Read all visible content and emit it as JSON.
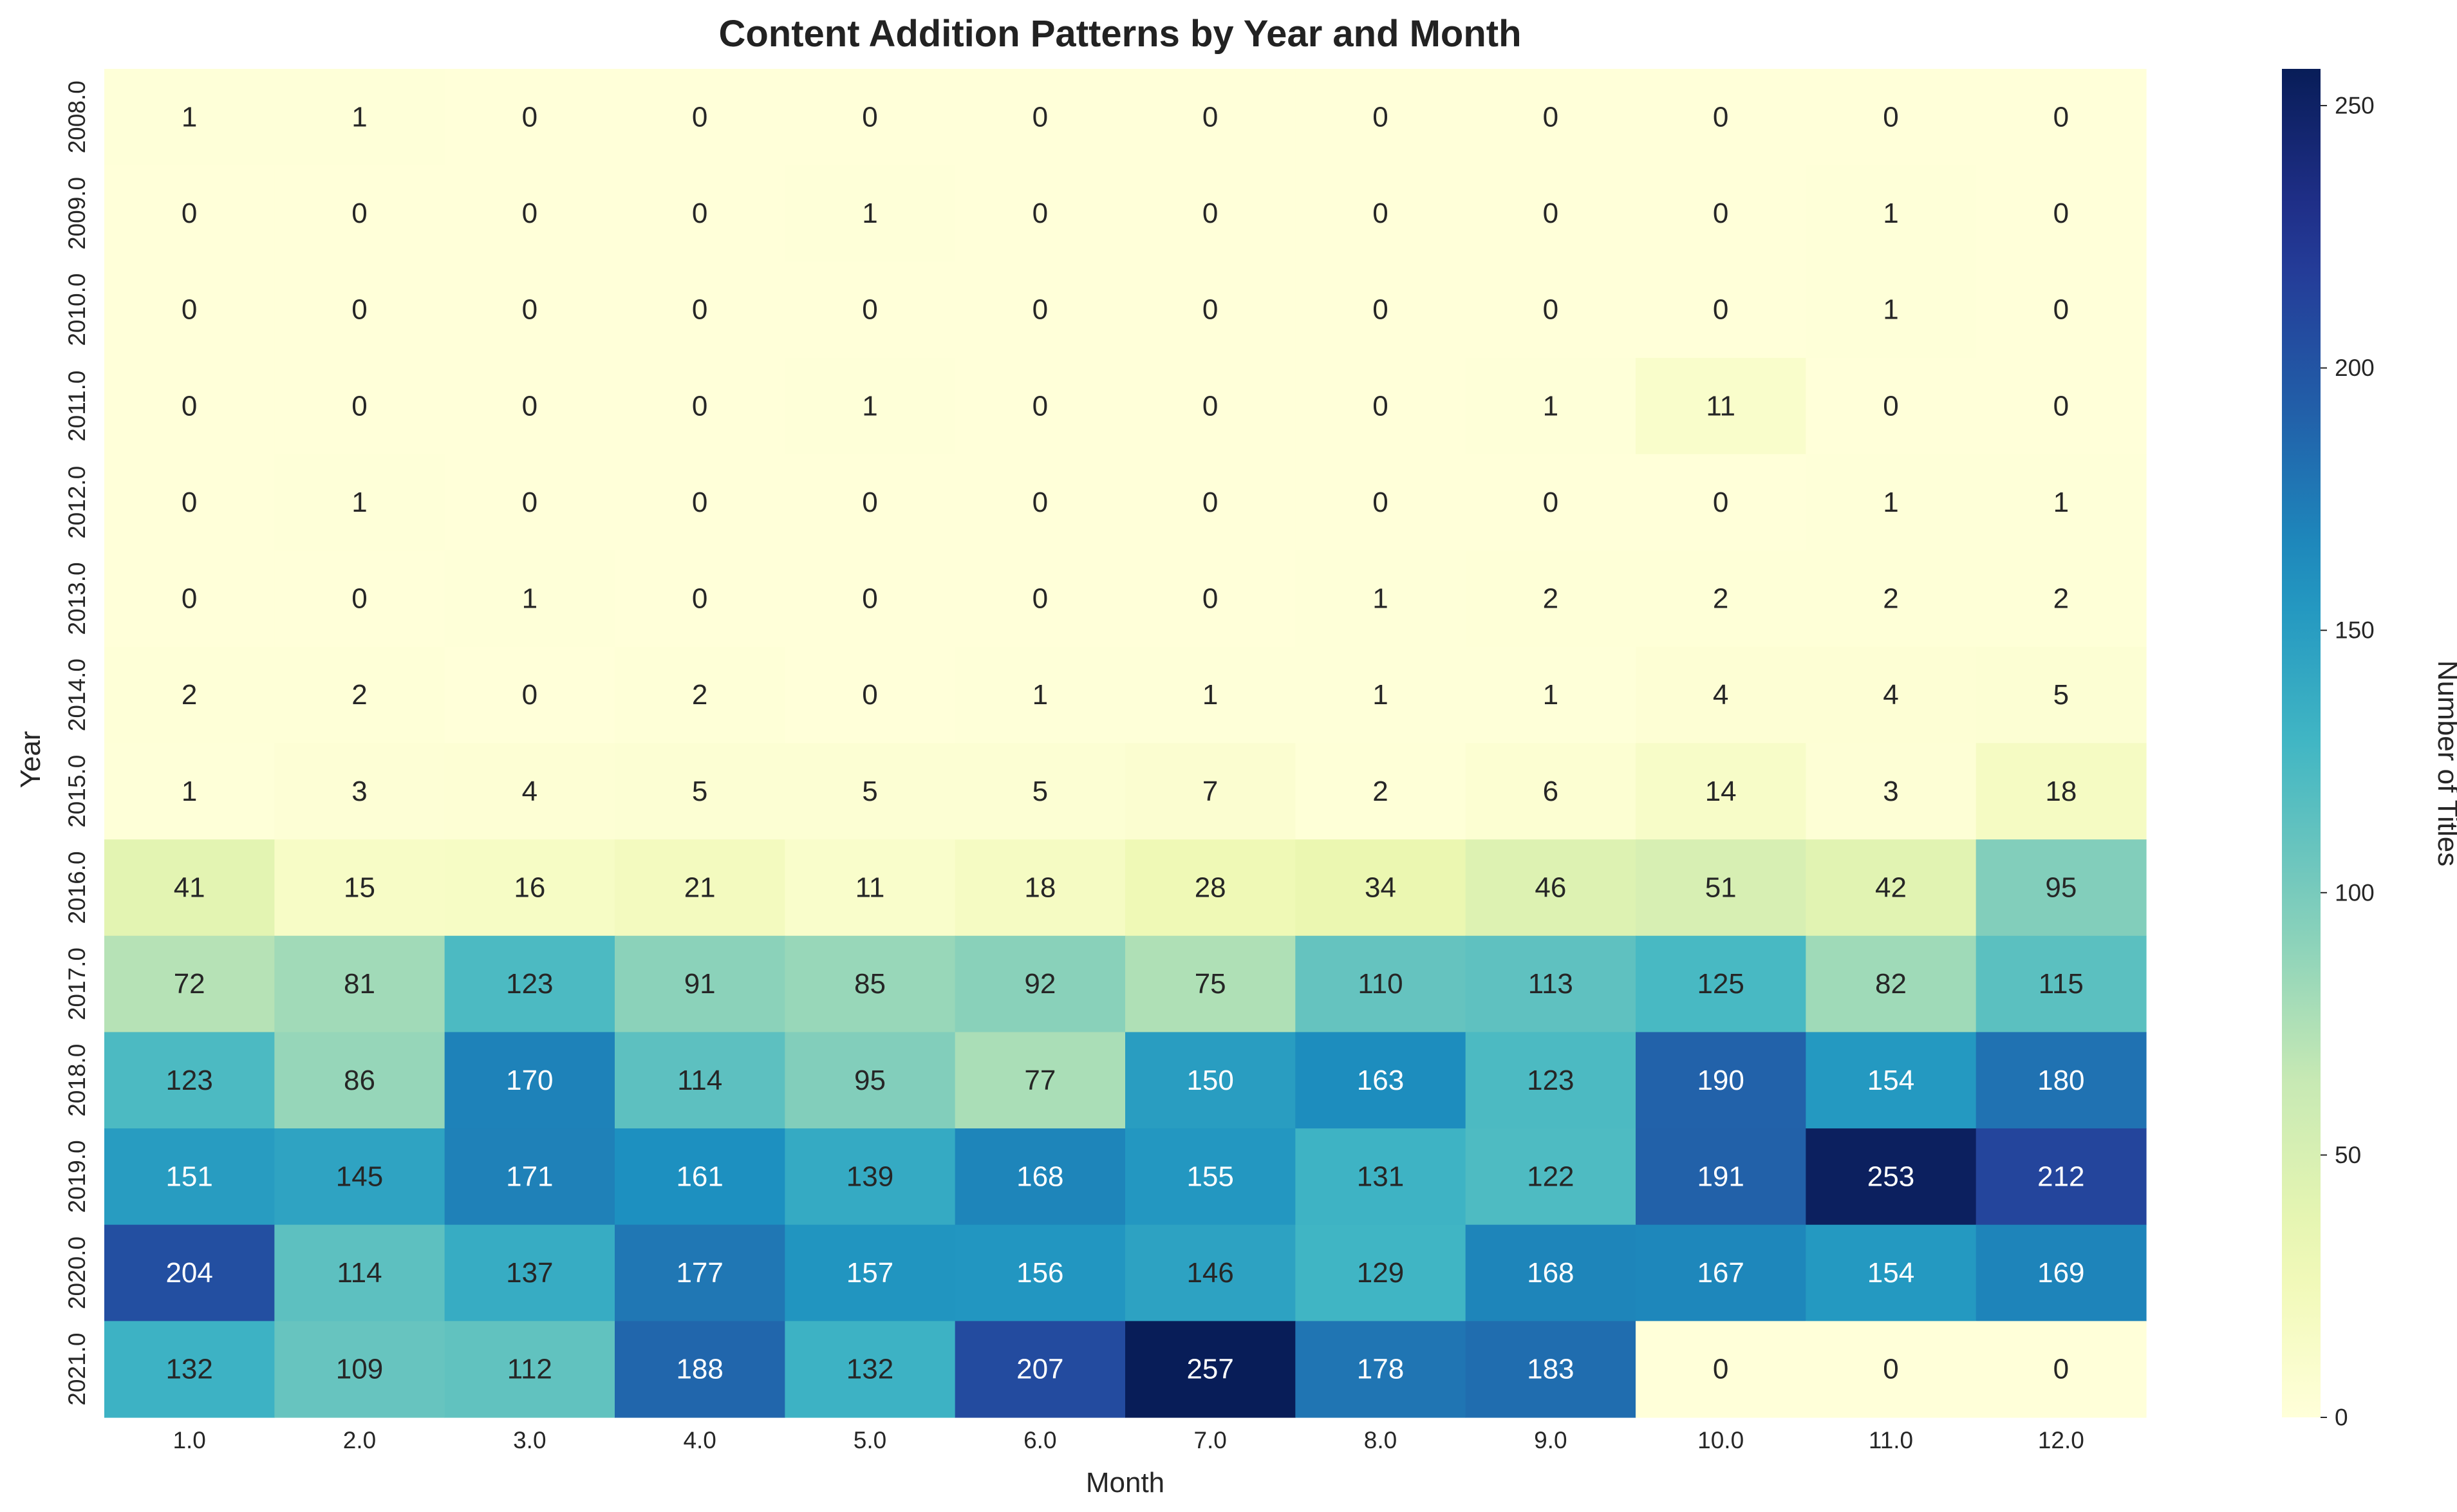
{
  "chart_data": {
    "type": "heatmap",
    "title": "Content Addition Patterns by Year and Month",
    "xlabel": "Month",
    "ylabel": "Year",
    "x_categories": [
      "1.0",
      "2.0",
      "3.0",
      "4.0",
      "5.0",
      "6.0",
      "7.0",
      "8.0",
      "9.0",
      "10.0",
      "11.0",
      "12.0"
    ],
    "y_categories": [
      "2008.0",
      "2009.0",
      "2010.0",
      "2011.0",
      "2012.0",
      "2013.0",
      "2014.0",
      "2015.0",
      "2016.0",
      "2017.0",
      "2018.0",
      "2019.0",
      "2020.0",
      "2021.0"
    ],
    "values": [
      [
        1,
        1,
        0,
        0,
        0,
        0,
        0,
        0,
        0,
        0,
        0,
        0
      ],
      [
        0,
        0,
        0,
        0,
        1,
        0,
        0,
        0,
        0,
        0,
        1,
        0
      ],
      [
        0,
        0,
        0,
        0,
        0,
        0,
        0,
        0,
        0,
        0,
        1,
        0
      ],
      [
        0,
        0,
        0,
        0,
        1,
        0,
        0,
        0,
        1,
        11,
        0,
        0
      ],
      [
        0,
        1,
        0,
        0,
        0,
        0,
        0,
        0,
        0,
        0,
        1,
        1
      ],
      [
        0,
        0,
        1,
        0,
        0,
        0,
        0,
        1,
        2,
        2,
        2,
        2
      ],
      [
        2,
        2,
        0,
        2,
        0,
        1,
        1,
        1,
        1,
        4,
        4,
        5
      ],
      [
        1,
        3,
        4,
        5,
        5,
        5,
        7,
        2,
        6,
        14,
        3,
        18
      ],
      [
        41,
        15,
        16,
        21,
        11,
        18,
        28,
        34,
        46,
        51,
        42,
        95
      ],
      [
        72,
        81,
        123,
        91,
        85,
        92,
        75,
        110,
        113,
        125,
        82,
        115
      ],
      [
        123,
        86,
        170,
        114,
        95,
        77,
        150,
        163,
        123,
        190,
        154,
        180
      ],
      [
        151,
        145,
        171,
        161,
        139,
        168,
        155,
        131,
        122,
        191,
        253,
        212
      ],
      [
        204,
        114,
        137,
        177,
        157,
        156,
        146,
        129,
        168,
        167,
        154,
        169
      ],
      [
        132,
        109,
        112,
        188,
        132,
        207,
        257,
        178,
        183,
        0,
        0,
        0
      ]
    ],
    "colormap": "YlGnBu",
    "colorbar": {
      "label": "Number of Titles",
      "ticks": [
        0,
        50,
        100,
        150,
        200,
        250
      ],
      "range": [
        0,
        257
      ]
    },
    "grid": false,
    "legend": "colorbar-right"
  }
}
